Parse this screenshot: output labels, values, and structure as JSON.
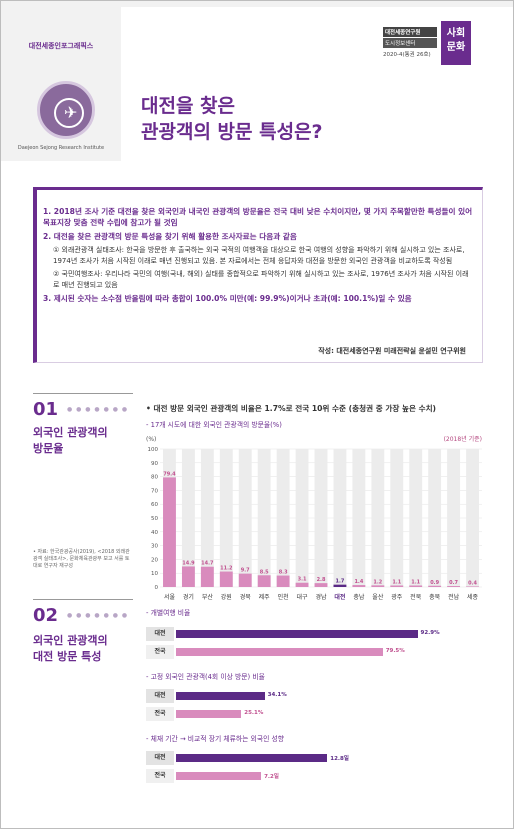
{
  "header": {
    "series_name": "대전세종인포그래픽스",
    "institute_en": "Daejeon Sejong Research Institute",
    "logo_line1": "대전세종연구원",
    "logo_line2": "도시정보센터",
    "issue": "2020-4(통권 26호)",
    "category_line1": "사회",
    "category_line2": "문화",
    "title_line1": "대전을 찾은",
    "title_line2": "관광객의 방문 특성은?",
    "accent_color": "#6a2c8e"
  },
  "summary": {
    "item1": "1. 2018년 조사 기준 대전을 찾은 외국인과 내국인 관광객의 방문율은 전국 대비 낮은 수치이지만, 몇 가지 주목할만한 특성들이 있어 목표지장 맞춤 전략 수립에 참고가 될 것임",
    "item2": "2. 대전을 찾은 관광객의 방문 특성을 찾기 위해 활용한 조사자료는 다음과 같음",
    "sub1": "① 외래관광객 실태조사: 한국을 방문한 후 출국하는 외국 국적의 여행객을 대상으로 한국 여행의 성향을 파악하기 위해 실시하고 있는 조사로, 1974년 조사가 처음 시작된 이래로 매년 진행되고 있음. 본 자료에서는 전체 응답자와 대전을 방문한 외국인 관광객을 비교하도록 작성됨",
    "sub2": "② 국민여행조사: 우리나라 국민의 여행(국내, 해외) 실태를 종합적으로 파악하기 위해 실시하고 있는 조사로, 1976년 조사가 처음 시작된 이래로 매년 진행되고 있음",
    "item3": "3. 제시된 숫자는 소수점 반올림에 따라 총합이 100.0% 미만(예: 99.9%)이거나 초과(예: 100.1%)일 수 있음",
    "author": "작성: 대전세종연구원 미래전략실 윤설민 연구위원"
  },
  "section1": {
    "num": "01",
    "title_line1": "외국인 관광객의",
    "title_line2": "방문율",
    "headline": "• 대전 방문 외국인 관광객의 비율은 1.7%로 전국 10위 수준 (충청권 중 가장 높은 수치)",
    "subhead": "- 17개 시도에 대한 외국인 관광객의 방문율(%)",
    "source": "• 자료: 한국관광공사(2019), <2018 외래관광객 실태조사>, 문화체육관광부 보고 서를 토대로 연구자 재구성"
  },
  "chart_data": {
    "type": "bar",
    "unit_label": "(%)",
    "note": "(2018년 기준)",
    "categories": [
      "서울",
      "경기",
      "부산",
      "강원",
      "경북",
      "제주",
      "인천",
      "대구",
      "경남",
      "대전",
      "충남",
      "울산",
      "광주",
      "전북",
      "충북",
      "전남",
      "세종"
    ],
    "values": [
      79.4,
      14.9,
      14.7,
      11.2,
      9.7,
      8.5,
      8.3,
      3.1,
      2.8,
      1.7,
      1.4,
      1.2,
      1.1,
      1.1,
      0.9,
      0.7,
      0.4
    ],
    "value_labels": [
      "79.4",
      "14.9",
      "14.7",
      "11.2",
      "9.7",
      "8.5",
      "8.3",
      "3.1",
      "2.8",
      "1.7",
      "1.4",
      "1.2",
      "1.1",
      "1.1",
      "0.9",
      "0.7",
      "0.4"
    ],
    "yticks": [
      0,
      10,
      20,
      30,
      40,
      50,
      60,
      70,
      80,
      90,
      100
    ],
    "ylim": [
      0,
      100
    ],
    "highlight": "대전",
    "colors": {
      "bar": "#d98bbd",
      "highlight": "#5b2a86",
      "track": "#ececec"
    }
  },
  "section2": {
    "num": "02",
    "title_line1": "외국인 관광객의",
    "title_line2": "대전 방문 특성",
    "charts": [
      {
        "subhead": "- 개별여행 비율",
        "rows": [
          {
            "label": "대전",
            "value": 92.9,
            "text": "92.9%"
          },
          {
            "label": "전국",
            "value": 79.5,
            "text": "79.5%"
          }
        ],
        "max": 100
      },
      {
        "subhead": "- 고정 외국인 관광객(4회 이상 방문) 비율",
        "rows": [
          {
            "label": "대전",
            "value": 34.1,
            "text": "34.1%"
          },
          {
            "label": "전국",
            "value": 25.1,
            "text": "25.1%"
          }
        ],
        "max": 100
      },
      {
        "subhead": "- 체재 기간 → 비교적 장기 체류하는 외국인 성향",
        "rows": [
          {
            "label": "대전",
            "value": 12.8,
            "text": "12.8일"
          },
          {
            "label": "전국",
            "value": 7.2,
            "text": "7.2일"
          }
        ],
        "max": 22
      }
    ]
  }
}
